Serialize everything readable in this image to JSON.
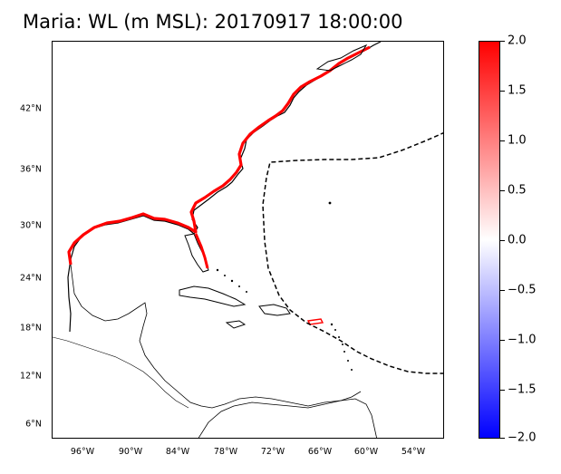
{
  "title": "Maria: WL (m MSL): 20170917 18:00:00",
  "map": {
    "lat_ticks": [
      "42°N",
      "36°N",
      "30°N",
      "24°N",
      "18°N",
      "12°N",
      "6°N"
    ],
    "lon_ticks": [
      "96°W",
      "90°W",
      "84°W",
      "78°W",
      "72°W",
      "66°W",
      "60°W",
      "54°W"
    ],
    "track_style": "dashed",
    "coastline_color": "#000000",
    "surge_color": "#ff0000"
  },
  "colorbar": {
    "labels": [
      "2.0",
      "1.5",
      "1.0",
      "0.5",
      "0.0",
      "−0.5",
      "−1.0",
      "−1.5",
      "−2.0"
    ],
    "min": -2.0,
    "max": 2.0,
    "colors": [
      "#0000ff",
      "#ffffff",
      "#ff0000"
    ]
  }
}
